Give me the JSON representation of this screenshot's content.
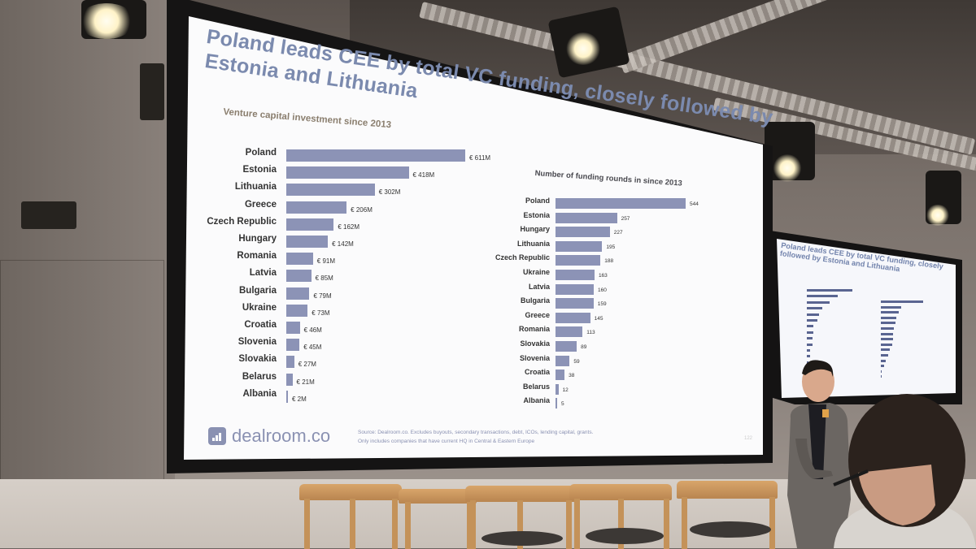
{
  "slide": {
    "title_line1": "Poland leads CEE by total VC funding, closely followed by",
    "title_line2": "Estonia and Lithuania",
    "left_panel_title": "Venture capital investment since 2013",
    "right_panel_title": "Number of funding rounds in since 2013",
    "logo_text": "dealroom.co",
    "source_line1": "Source: Dealroom.co. Excludes buyouts, secondary transactions, debt, ICOs, lending capital, grants.",
    "source_line2": "Only includes companies that have current HQ in Central & Eastern Europe",
    "page_number": "122"
  },
  "vc_investment": [
    {
      "country": "Poland",
      "value": 611,
      "label": "€ 611M"
    },
    {
      "country": "Estonia",
      "value": 418,
      "label": "€ 418M"
    },
    {
      "country": "Lithuania",
      "value": 302,
      "label": "€ 302M"
    },
    {
      "country": "Greece",
      "value": 206,
      "label": "€ 206M"
    },
    {
      "country": "Czech Republic",
      "value": 162,
      "label": "€ 162M"
    },
    {
      "country": "Hungary",
      "value": 142,
      "label": "€ 142M"
    },
    {
      "country": "Romania",
      "value": 91,
      "label": "€ 91M"
    },
    {
      "country": "Latvia",
      "value": 85,
      "label": "€ 85M"
    },
    {
      "country": "Bulgaria",
      "value": 79,
      "label": "€ 79M"
    },
    {
      "country": "Ukraine",
      "value": 73,
      "label": "€ 73M"
    },
    {
      "country": "Croatia",
      "value": 46,
      "label": "€ 46M"
    },
    {
      "country": "Slovenia",
      "value": 45,
      "label": "€ 45M"
    },
    {
      "country": "Slovakia",
      "value": 27,
      "label": "€ 27M"
    },
    {
      "country": "Belarus",
      "value": 21,
      "label": "€ 21M"
    },
    {
      "country": "Albania",
      "value": 2,
      "label": "€ 2M"
    }
  ],
  "funding_rounds": [
    {
      "country": "Poland",
      "value": 544,
      "label": "544"
    },
    {
      "country": "Estonia",
      "value": 257,
      "label": "257"
    },
    {
      "country": "Hungary",
      "value": 227,
      "label": "227"
    },
    {
      "country": "Lithuania",
      "value": 195,
      "label": "195"
    },
    {
      "country": "Czech Republic",
      "value": 188,
      "label": "188"
    },
    {
      "country": "Ukraine",
      "value": 163,
      "label": "163"
    },
    {
      "country": "Latvia",
      "value": 160,
      "label": "160"
    },
    {
      "country": "Bulgaria",
      "value": 159,
      "label": "159"
    },
    {
      "country": "Greece",
      "value": 145,
      "label": "145"
    },
    {
      "country": "Romania",
      "value": 113,
      "label": "113"
    },
    {
      "country": "Slovakia",
      "value": 89,
      "label": "89"
    },
    {
      "country": "Slovenia",
      "value": 59,
      "label": "59"
    },
    {
      "country": "Croatia",
      "value": 38,
      "label": "38"
    },
    {
      "country": "Belarus",
      "value": 12,
      "label": "12"
    },
    {
      "country": "Albania",
      "value": 5,
      "label": "5"
    }
  ],
  "side_slide": {
    "title": "Poland leads CEE by total VC funding, closely followed by Estonia and Lithuania"
  },
  "colors": {
    "bar": "#8c93b6",
    "title": "#7b8aae",
    "wood": "#d8a56a"
  }
}
